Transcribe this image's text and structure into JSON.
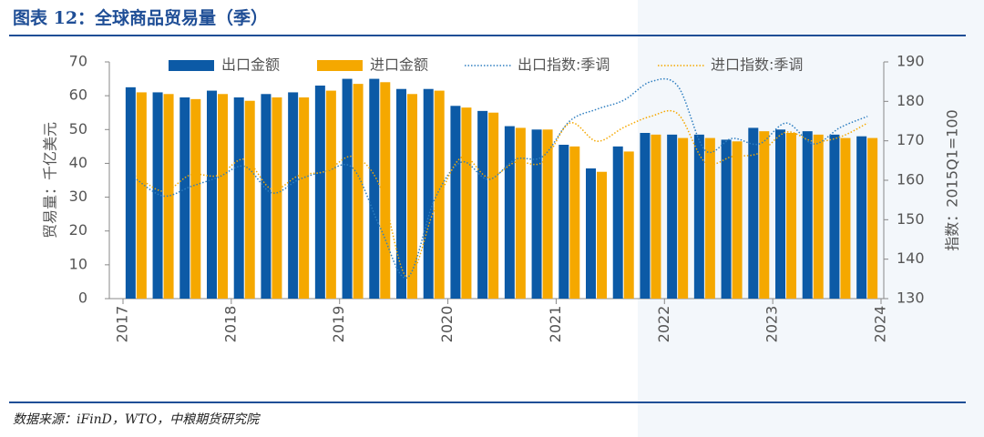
{
  "header": {
    "title": "图表 12：全球商品贸易量（季）"
  },
  "chart_data": {
    "type": "bar_line",
    "ylabel": "贸易量：千亿美元",
    "y2label": "指数：2015Q1=100",
    "x": [
      2017.125,
      2017.375,
      2017.625,
      2017.875,
      2018.125,
      2018.375,
      2018.625,
      2018.875,
      2019.125,
      2019.375,
      2019.625,
      2019.875,
      2020.125,
      2020.375,
      2020.625,
      2020.875,
      2021.125,
      2021.375,
      2021.625,
      2021.875,
      2022.125,
      2022.375,
      2022.625,
      2022.875,
      2023.125,
      2023.375,
      2023.625,
      2023.875
    ],
    "xlim": [
      2017,
      2024
    ],
    "xticks": [
      2017,
      2018,
      2019,
      2020,
      2021,
      2022,
      2023,
      2024
    ],
    "ylim": [
      0,
      70
    ],
    "yticks": [
      0,
      10,
      20,
      30,
      40,
      50,
      60,
      70
    ],
    "y2lim": [
      130,
      190
    ],
    "y2ticks": [
      130,
      140,
      150,
      160,
      170,
      180,
      190
    ],
    "series": [
      {
        "name": "出口金额",
        "kind": "bar",
        "color": "#0c5aa6",
        "values": [
          62.5,
          61,
          59.5,
          61.5,
          59.5,
          60.5,
          61,
          63,
          65,
          65,
          62,
          62,
          57,
          55.5,
          51,
          50,
          45.5,
          38.5,
          45,
          49,
          48.5,
          48.5,
          47,
          50.5,
          50,
          49.5,
          48.5,
          48
        ]
      },
      {
        "name": "进口金额",
        "kind": "bar",
        "color": "#f5a800",
        "values": [
          61,
          60.5,
          59,
          60.5,
          58.5,
          59.5,
          59.5,
          61.5,
          63.5,
          64,
          60.5,
          61.5,
          56.5,
          55,
          50.5,
          50,
          45,
          37.5,
          43.5,
          48.5,
          47.5,
          47.5,
          46.5,
          49.5,
          49,
          48.5,
          47.5,
          47.5
        ]
      },
      {
        "name": "出口指数:季调",
        "kind": "line",
        "axis": "y2",
        "color": "#2f7fc1",
        "values": [
          160.2,
          156,
          158.4,
          160.7,
          163.5,
          156.8,
          160.2,
          162.3,
          163,
          148,
          135.3,
          155,
          164.6,
          160.2,
          165.3,
          166,
          175,
          178,
          180.3,
          185,
          183.8,
          167.6,
          170.6,
          169.2,
          174.5,
          169.2,
          173.4,
          176.2
        ]
      },
      {
        "name": "进口指数:季调",
        "kind": "line",
        "axis": "y2",
        "color": "#f5a800",
        "values": [
          161.2,
          157.2,
          161.4,
          161.2,
          165.3,
          157.7,
          161.2,
          162.3,
          166,
          158.4,
          135.3,
          152.6,
          165.8,
          160.7,
          164.6,
          164.6,
          174.5,
          169.9,
          173.4,
          176.2,
          176.8,
          164.6,
          166,
          166.9,
          172.2,
          169.9,
          171,
          174.5
        ]
      }
    ]
  },
  "footer": {
    "source": "数据来源：iFinD，WTO，中粮期货研究院"
  }
}
